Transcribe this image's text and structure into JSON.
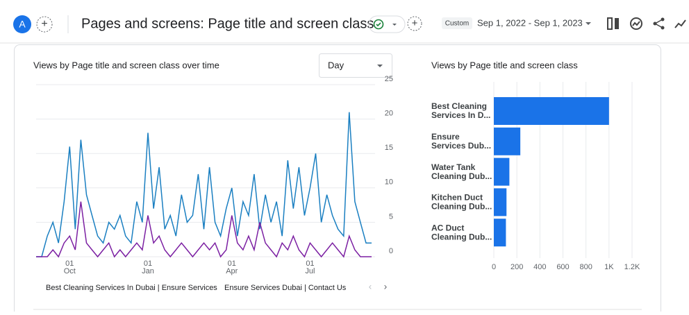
{
  "header": {
    "avatar": "A",
    "title": "Pages and screens: Page title and screen class",
    "date_label": "Custom",
    "date_range": "Sep 1, 2022 - Sep 1, 2023"
  },
  "chart_data": [
    {
      "type": "line",
      "title": "Views by Page title and screen class over time",
      "dropdown": "Day",
      "categories": [
        null,
        null,
        null,
        null,
        null,
        null,
        [
          "01",
          "Oct"
        ],
        null,
        null,
        null,
        null,
        null,
        null,
        null,
        null,
        null,
        null,
        null,
        null,
        null,
        [
          "01",
          "Jan"
        ],
        null,
        null,
        null,
        null,
        null,
        null,
        null,
        null,
        null,
        null,
        null,
        null,
        null,
        null,
        [
          "01",
          "Apr"
        ],
        null,
        null,
        null,
        null,
        null,
        null,
        null,
        null,
        null,
        null,
        null,
        null,
        null,
        [
          "01",
          "Jul"
        ],
        null,
        null,
        null,
        null,
        null,
        null,
        null,
        null,
        null,
        null,
        null
      ],
      "series": [
        {
          "name": "Best Cleaning Services In Dubai | Ensure Services",
          "color": "#1a7fc1",
          "values": [
            0,
            0,
            3,
            5,
            2,
            8,
            16,
            4,
            17,
            9,
            6,
            3,
            2,
            5,
            4,
            6,
            3,
            2,
            8,
            5,
            18,
            7,
            13,
            4,
            6,
            3,
            9,
            5,
            6,
            12,
            4,
            13,
            5,
            3,
            7,
            10,
            3,
            8,
            6,
            12,
            4,
            9,
            5,
            8,
            3,
            14,
            7,
            13,
            6,
            10,
            15,
            5,
            9,
            6,
            4,
            3,
            21,
            8,
            5,
            2,
            2
          ]
        },
        {
          "name": "Ensure Services Dubai | Contact Us",
          "color": "#7b1fa2",
          "values": [
            0,
            0,
            0,
            1,
            0,
            2,
            3,
            1,
            8,
            2,
            1,
            0,
            1,
            2,
            0,
            1,
            0,
            1,
            2,
            1,
            6,
            2,
            3,
            1,
            0,
            1,
            2,
            1,
            0,
            1,
            2,
            1,
            2,
            0,
            1,
            6,
            2,
            1,
            3,
            1,
            5,
            2,
            1,
            0,
            2,
            1,
            3,
            1,
            0,
            2,
            1,
            0,
            1,
            2,
            1,
            0,
            3,
            1,
            0,
            0,
            0
          ]
        }
      ],
      "ylim": [
        0,
        25
      ],
      "yticks": [
        0,
        5,
        10,
        15,
        20,
        25
      ],
      "grid": true
    },
    {
      "type": "hbar",
      "title": "Views by Page title and screen class",
      "categories": [
        [
          "Best Cleaning",
          "Services In D..."
        ],
        [
          "Ensure",
          "Services Dub..."
        ],
        [
          "Water Tank",
          "Cleaning Dub..."
        ],
        [
          "Kitchen Duct",
          "Cleaning Dub..."
        ],
        [
          "AC Duct",
          "Cleaning Dub..."
        ]
      ],
      "values": [
        1000,
        230,
        135,
        110,
        105
      ],
      "color": "#1a73e8",
      "xlim": [
        0,
        1200
      ],
      "xticks": [
        0,
        200,
        400,
        600,
        800,
        {
          "value": 1000,
          "label": "1K"
        },
        {
          "value": 1200,
          "label": "1.2K"
        }
      ],
      "grid": true
    }
  ]
}
